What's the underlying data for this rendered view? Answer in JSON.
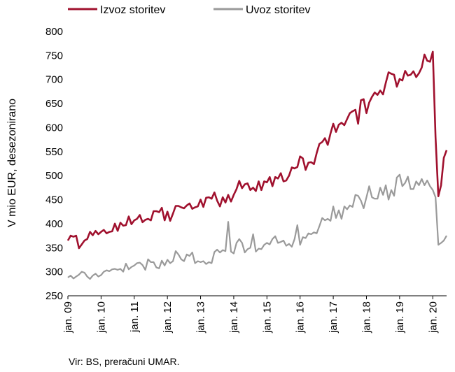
{
  "chart_data": {
    "type": "line",
    "ylabel": "V mio EUR, desezonirano",
    "ylim": [
      250,
      800
    ],
    "yticks": [
      250,
      300,
      350,
      400,
      450,
      500,
      550,
      600,
      650,
      700,
      750,
      800
    ],
    "xlim": [
      2009.0,
      2020.4167
    ],
    "xticks": [
      {
        "label": "jan. 09",
        "x": 2009
      },
      {
        "label": "jan. 10",
        "x": 2010
      },
      {
        "label": "jan. 11",
        "x": 2011
      },
      {
        "label": "jan. 12",
        "x": 2012
      },
      {
        "label": "jan. 13",
        "x": 2013
      },
      {
        "label": "jan. 14",
        "x": 2014
      },
      {
        "label": "jan. 15",
        "x": 2015
      },
      {
        "label": "jan. 16",
        "x": 2016
      },
      {
        "label": "jan. 17",
        "x": 2017
      },
      {
        "label": "jan. 18",
        "x": 2018
      },
      {
        "label": "jan. 19",
        "x": 2019
      },
      {
        "label": "jan. 20",
        "x": 2020
      }
    ],
    "series": [
      {
        "name": "Izvoz storitev",
        "color": "#a0112e",
        "points": [
          [
            2009.0,
            365
          ],
          [
            2009.083,
            375
          ],
          [
            2009.167,
            373
          ],
          [
            2009.25,
            375
          ],
          [
            2009.333,
            349
          ],
          [
            2009.417,
            357
          ],
          [
            2009.5,
            365
          ],
          [
            2009.583,
            368
          ],
          [
            2009.667,
            383
          ],
          [
            2009.75,
            376
          ],
          [
            2009.833,
            385
          ],
          [
            2009.917,
            378
          ],
          [
            2010.0,
            383
          ],
          [
            2010.083,
            387
          ],
          [
            2010.167,
            380
          ],
          [
            2010.25,
            383
          ],
          [
            2010.333,
            384
          ],
          [
            2010.417,
            400
          ],
          [
            2010.5,
            385
          ],
          [
            2010.583,
            402
          ],
          [
            2010.667,
            396
          ],
          [
            2010.75,
            397
          ],
          [
            2010.833,
            415
          ],
          [
            2010.917,
            399
          ],
          [
            2011.0,
            407
          ],
          [
            2011.083,
            410
          ],
          [
            2011.167,
            418
          ],
          [
            2011.25,
            403
          ],
          [
            2011.333,
            408
          ],
          [
            2011.417,
            410
          ],
          [
            2011.5,
            407
          ],
          [
            2011.583,
            426
          ],
          [
            2011.667,
            426
          ],
          [
            2011.75,
            424
          ],
          [
            2011.833,
            433
          ],
          [
            2011.917,
            407
          ],
          [
            2012.0,
            425
          ],
          [
            2012.083,
            406
          ],
          [
            2012.167,
            421
          ],
          [
            2012.25,
            437
          ],
          [
            2012.333,
            437
          ],
          [
            2012.417,
            434
          ],
          [
            2012.5,
            432
          ],
          [
            2012.583,
            438
          ],
          [
            2012.667,
            442
          ],
          [
            2012.75,
            431
          ],
          [
            2012.833,
            434
          ],
          [
            2012.917,
            436
          ],
          [
            2013.0,
            450
          ],
          [
            2013.083,
            435
          ],
          [
            2013.167,
            454
          ],
          [
            2013.25,
            455
          ],
          [
            2013.333,
            452
          ],
          [
            2013.417,
            465
          ],
          [
            2013.5,
            448
          ],
          [
            2013.583,
            436
          ],
          [
            2013.667,
            455
          ],
          [
            2013.75,
            444
          ],
          [
            2013.833,
            460
          ],
          [
            2013.917,
            446
          ],
          [
            2014.0,
            460
          ],
          [
            2014.083,
            472
          ],
          [
            2014.167,
            489
          ],
          [
            2014.25,
            474
          ],
          [
            2014.333,
            482
          ],
          [
            2014.417,
            484
          ],
          [
            2014.5,
            470
          ],
          [
            2014.583,
            475
          ],
          [
            2014.667,
            468
          ],
          [
            2014.75,
            488
          ],
          [
            2014.833,
            470
          ],
          [
            2014.917,
            488
          ],
          [
            2015.0,
            486
          ],
          [
            2015.083,
            497
          ],
          [
            2015.167,
            478
          ],
          [
            2015.25,
            497
          ],
          [
            2015.333,
            494
          ],
          [
            2015.417,
            505
          ],
          [
            2015.5,
            488
          ],
          [
            2015.583,
            490
          ],
          [
            2015.667,
            500
          ],
          [
            2015.75,
            517
          ],
          [
            2015.833,
            515
          ],
          [
            2015.917,
            518
          ],
          [
            2016.0,
            540
          ],
          [
            2016.083,
            536
          ],
          [
            2016.167,
            512
          ],
          [
            2016.25,
            527
          ],
          [
            2016.333,
            528
          ],
          [
            2016.417,
            524
          ],
          [
            2016.5,
            547
          ],
          [
            2016.583,
            566
          ],
          [
            2016.667,
            570
          ],
          [
            2016.75,
            578
          ],
          [
            2016.833,
            564
          ],
          [
            2016.917,
            588
          ],
          [
            2017.0,
            608
          ],
          [
            2017.083,
            591
          ],
          [
            2017.167,
            606
          ],
          [
            2017.25,
            610
          ],
          [
            2017.333,
            605
          ],
          [
            2017.417,
            618
          ],
          [
            2017.5,
            630
          ],
          [
            2017.583,
            634
          ],
          [
            2017.667,
            637
          ],
          [
            2017.75,
            608
          ],
          [
            2017.833,
            657
          ],
          [
            2017.917,
            659
          ],
          [
            2018.0,
            630
          ],
          [
            2018.083,
            652
          ],
          [
            2018.167,
            664
          ],
          [
            2018.25,
            673
          ],
          [
            2018.333,
            668
          ],
          [
            2018.417,
            677
          ],
          [
            2018.5,
            669
          ],
          [
            2018.583,
            693
          ],
          [
            2018.667,
            715
          ],
          [
            2018.75,
            712
          ],
          [
            2018.833,
            710
          ],
          [
            2018.917,
            685
          ],
          [
            2019.0,
            701
          ],
          [
            2019.083,
            698
          ],
          [
            2019.167,
            718
          ],
          [
            2019.25,
            708
          ],
          [
            2019.333,
            710
          ],
          [
            2019.417,
            717
          ],
          [
            2019.5,
            705
          ],
          [
            2019.583,
            713
          ],
          [
            2019.667,
            725
          ],
          [
            2019.75,
            752
          ],
          [
            2019.833,
            739
          ],
          [
            2019.917,
            737
          ],
          [
            2020.0,
            758
          ],
          [
            2020.083,
            580
          ],
          [
            2020.167,
            457
          ],
          [
            2020.25,
            480
          ],
          [
            2020.333,
            537
          ],
          [
            2020.417,
            553
          ]
        ]
      },
      {
        "name": "Uvoz storitev",
        "color": "#9a9a9a",
        "points": [
          [
            2009.0,
            288
          ],
          [
            2009.083,
            292
          ],
          [
            2009.167,
            286
          ],
          [
            2009.25,
            290
          ],
          [
            2009.333,
            294
          ],
          [
            2009.417,
            300
          ],
          [
            2009.5,
            298
          ],
          [
            2009.583,
            290
          ],
          [
            2009.667,
            285
          ],
          [
            2009.75,
            292
          ],
          [
            2009.833,
            296
          ],
          [
            2009.917,
            290
          ],
          [
            2010.0,
            293
          ],
          [
            2010.083,
            300
          ],
          [
            2010.167,
            303
          ],
          [
            2010.25,
            301
          ],
          [
            2010.333,
            305
          ],
          [
            2010.417,
            306
          ],
          [
            2010.5,
            304
          ],
          [
            2010.583,
            306
          ],
          [
            2010.667,
            300
          ],
          [
            2010.75,
            317
          ],
          [
            2010.833,
            305
          ],
          [
            2010.917,
            310
          ],
          [
            2011.0,
            313
          ],
          [
            2011.083,
            318
          ],
          [
            2011.167,
            319
          ],
          [
            2011.25,
            314
          ],
          [
            2011.333,
            304
          ],
          [
            2011.417,
            326
          ],
          [
            2011.5,
            320
          ],
          [
            2011.583,
            320
          ],
          [
            2011.667,
            309
          ],
          [
            2011.75,
            307
          ],
          [
            2011.833,
            323
          ],
          [
            2011.917,
            313
          ],
          [
            2012.0,
            325
          ],
          [
            2012.083,
            318
          ],
          [
            2012.167,
            322
          ],
          [
            2012.25,
            343
          ],
          [
            2012.333,
            336
          ],
          [
            2012.417,
            326
          ],
          [
            2012.5,
            322
          ],
          [
            2012.583,
            336
          ],
          [
            2012.667,
            333
          ],
          [
            2012.75,
            340
          ],
          [
            2012.833,
            318
          ],
          [
            2012.917,
            322
          ],
          [
            2013.0,
            320
          ],
          [
            2013.083,
            322
          ],
          [
            2013.167,
            316
          ],
          [
            2013.25,
            320
          ],
          [
            2013.333,
            318
          ],
          [
            2013.417,
            341
          ],
          [
            2013.5,
            346
          ],
          [
            2013.583,
            340
          ],
          [
            2013.667,
            345
          ],
          [
            2013.75,
            343
          ],
          [
            2013.833,
            404
          ],
          [
            2013.917,
            342
          ],
          [
            2014.0,
            338
          ],
          [
            2014.083,
            360
          ],
          [
            2014.167,
            368
          ],
          [
            2014.25,
            360
          ],
          [
            2014.333,
            340
          ],
          [
            2014.417,
            347
          ],
          [
            2014.5,
            350
          ],
          [
            2014.583,
            378
          ],
          [
            2014.667,
            342
          ],
          [
            2014.75,
            348
          ],
          [
            2014.833,
            347
          ],
          [
            2014.917,
            356
          ],
          [
            2015.0,
            360
          ],
          [
            2015.083,
            357
          ],
          [
            2015.167,
            368
          ],
          [
            2015.25,
            374
          ],
          [
            2015.333,
            360
          ],
          [
            2015.417,
            362
          ],
          [
            2015.5,
            365
          ],
          [
            2015.583,
            354
          ],
          [
            2015.667,
            358
          ],
          [
            2015.75,
            352
          ],
          [
            2015.833,
            368
          ],
          [
            2015.917,
            397
          ],
          [
            2016.0,
            356
          ],
          [
            2016.083,
            372
          ],
          [
            2016.167,
            370
          ],
          [
            2016.25,
            380
          ],
          [
            2016.333,
            378
          ],
          [
            2016.417,
            382
          ],
          [
            2016.5,
            380
          ],
          [
            2016.583,
            395
          ],
          [
            2016.667,
            412
          ],
          [
            2016.75,
            407
          ],
          [
            2016.833,
            410
          ],
          [
            2016.917,
            406
          ],
          [
            2017.0,
            436
          ],
          [
            2017.083,
            412
          ],
          [
            2017.167,
            428
          ],
          [
            2017.25,
            410
          ],
          [
            2017.333,
            436
          ],
          [
            2017.417,
            430
          ],
          [
            2017.5,
            438
          ],
          [
            2017.583,
            435
          ],
          [
            2017.667,
            460
          ],
          [
            2017.75,
            458
          ],
          [
            2017.833,
            448
          ],
          [
            2017.917,
            432
          ],
          [
            2018.0,
            455
          ],
          [
            2018.083,
            478
          ],
          [
            2018.167,
            455
          ],
          [
            2018.25,
            452
          ],
          [
            2018.333,
            452
          ],
          [
            2018.417,
            475
          ],
          [
            2018.5,
            460
          ],
          [
            2018.583,
            480
          ],
          [
            2018.667,
            450
          ],
          [
            2018.75,
            470
          ],
          [
            2018.833,
            458
          ],
          [
            2018.917,
            496
          ],
          [
            2019.0,
            502
          ],
          [
            2019.083,
            478
          ],
          [
            2019.167,
            485
          ],
          [
            2019.25,
            498
          ],
          [
            2019.333,
            472
          ],
          [
            2019.417,
            472
          ],
          [
            2019.5,
            488
          ],
          [
            2019.583,
            480
          ],
          [
            2019.667,
            493
          ],
          [
            2019.75,
            480
          ],
          [
            2019.833,
            490
          ],
          [
            2019.917,
            478
          ],
          [
            2020.0,
            470
          ],
          [
            2020.083,
            455
          ],
          [
            2020.167,
            356
          ],
          [
            2020.25,
            360
          ],
          [
            2020.333,
            365
          ],
          [
            2020.417,
            375
          ]
        ]
      }
    ],
    "source": "Vir: BS, preračuni UMAR."
  }
}
